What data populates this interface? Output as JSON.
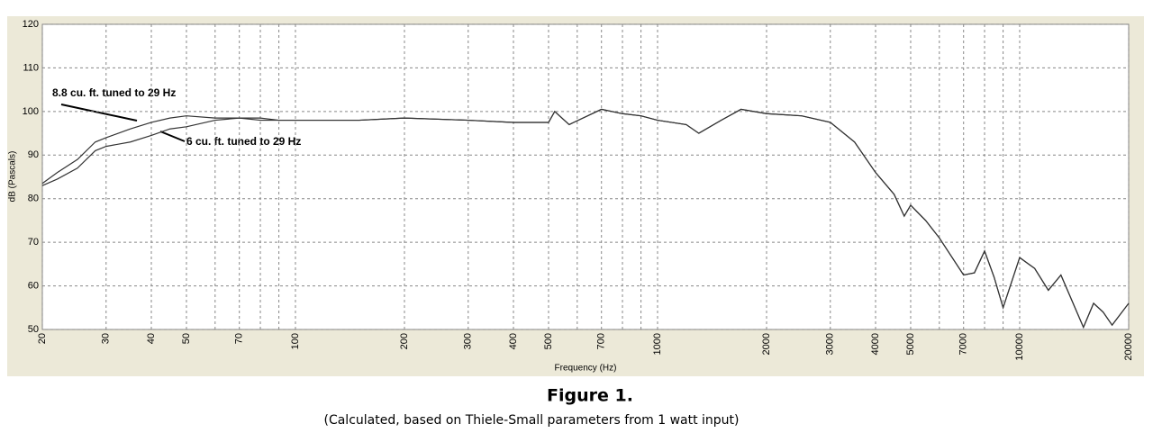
{
  "chart_data": {
    "type": "line",
    "x_label": "Frequency (Hz)",
    "y_label": "dB (Pascals)",
    "title": "Figure 1.",
    "subtitle": "(Calculated, based on Thiele-Small parameters from 1 watt input)",
    "x": [
      20,
      22,
      25,
      28,
      30,
      35,
      40,
      45,
      50,
      60,
      70,
      80,
      90,
      100,
      150,
      200,
      300,
      400,
      500,
      520,
      570,
      700,
      800,
      900,
      1000,
      1200,
      1300,
      1500,
      1700,
      2000,
      2500,
      3000,
      3500,
      4000,
      4500,
      4800,
      5000,
      5500,
      6000,
      7000,
      7500,
      8000,
      8500,
      9000,
      10000,
      11000,
      12000,
      13000,
      15000,
      16000,
      17000,
      18000,
      20000
    ],
    "series": [
      {
        "name": "8.8 cu. ft. tuned to 29 Hz",
        "color": "#333333",
        "values": [
          83.5,
          86,
          89,
          93,
          94,
          96,
          97.5,
          98.5,
          99,
          98.5,
          98.5,
          98.5,
          98,
          98,
          98,
          98.5,
          98,
          97.5,
          97.5,
          100,
          97,
          100.5,
          99.5,
          99,
          98,
          97,
          95,
          98,
          100.5,
          99.5,
          99,
          97.5,
          93,
          86,
          81,
          76,
          78.5,
          75,
          71,
          62.5,
          63,
          68,
          62,
          55,
          66.5,
          64,
          59,
          62.5,
          50.5,
          56,
          54,
          51,
          56
        ]
      },
      {
        "name": "6 cu. ft. tuned to 29 Hz",
        "color": "#333333",
        "values": [
          83,
          84.5,
          87,
          91,
          92,
          93,
          94.5,
          96,
          96.5,
          98,
          98.5,
          98,
          98,
          98,
          98,
          98.5,
          98,
          97.5,
          97.5,
          100,
          97,
          100.5,
          99.5,
          99,
          98,
          97,
          95,
          98,
          100.5,
          99.5,
          99,
          97.5,
          93,
          86,
          81,
          76,
          78.5,
          75,
          71,
          62.5,
          63,
          68,
          62,
          55,
          66.5,
          64,
          59,
          62.5,
          50.5,
          56,
          54,
          51,
          56
        ]
      }
    ],
    "xlim": [
      20,
      20000
    ],
    "ylim": [
      50,
      120
    ],
    "xlog": true,
    "xticks": [
      20,
      30,
      40,
      50,
      70,
      100,
      200,
      300,
      400,
      500,
      700,
      1000,
      2000,
      3000,
      4000,
      5000,
      7000,
      10000,
      20000
    ],
    "xminor": [
      60,
      80,
      90,
      600,
      800,
      900,
      6000,
      8000,
      9000
    ],
    "yticks": [
      50,
      60,
      70,
      80,
      90,
      100,
      110,
      120
    ],
    "grid": true
  }
}
